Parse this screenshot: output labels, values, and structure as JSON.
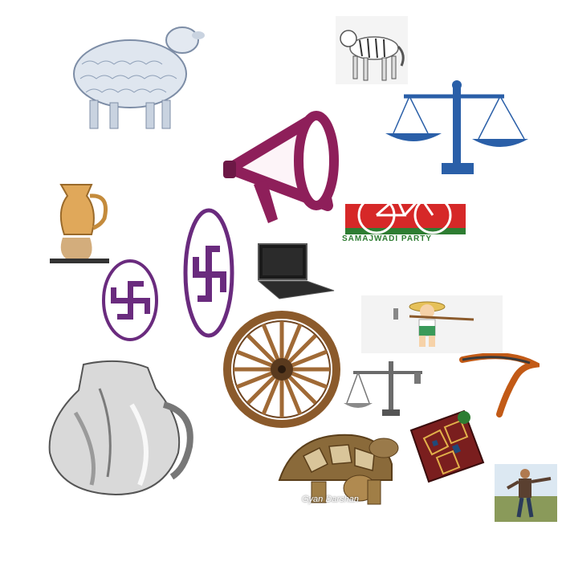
{
  "symbols": [
    {
      "id": "sheep",
      "label": ""
    },
    {
      "id": "tiger",
      "label": ""
    },
    {
      "id": "weighing-scale",
      "label": ""
    },
    {
      "id": "megaphone",
      "label": ""
    },
    {
      "id": "bicycle",
      "label": ""
    },
    {
      "id": "jug",
      "label": ""
    },
    {
      "id": "swastika-small",
      "label": ""
    },
    {
      "id": "swastika-large",
      "label": ""
    },
    {
      "id": "laptop",
      "label": ""
    },
    {
      "id": "farmer",
      "label": ""
    },
    {
      "id": "cart-wheel",
      "label": ""
    },
    {
      "id": "sickle",
      "label": ""
    },
    {
      "id": "small-scale",
      "label": ""
    },
    {
      "id": "glass-jug",
      "label": ""
    },
    {
      "id": "tortoise",
      "label": ""
    },
    {
      "id": "carpet-bag",
      "label": ""
    },
    {
      "id": "walking-man",
      "label": ""
    }
  ],
  "bicycle_banner": {
    "text": "SAMAJWADI PARTY"
  },
  "watermark": {
    "text": "Gyan Darshan"
  },
  "colors": {
    "swastika_purple": "#6a2b7e",
    "scale_blue": "#2a5fa8",
    "megaphone_magenta": "#8e1f5a",
    "bicycle_red": "#d62828",
    "bicycle_green": "#2e7d32",
    "wheel_brown": "#8b5a2b"
  }
}
